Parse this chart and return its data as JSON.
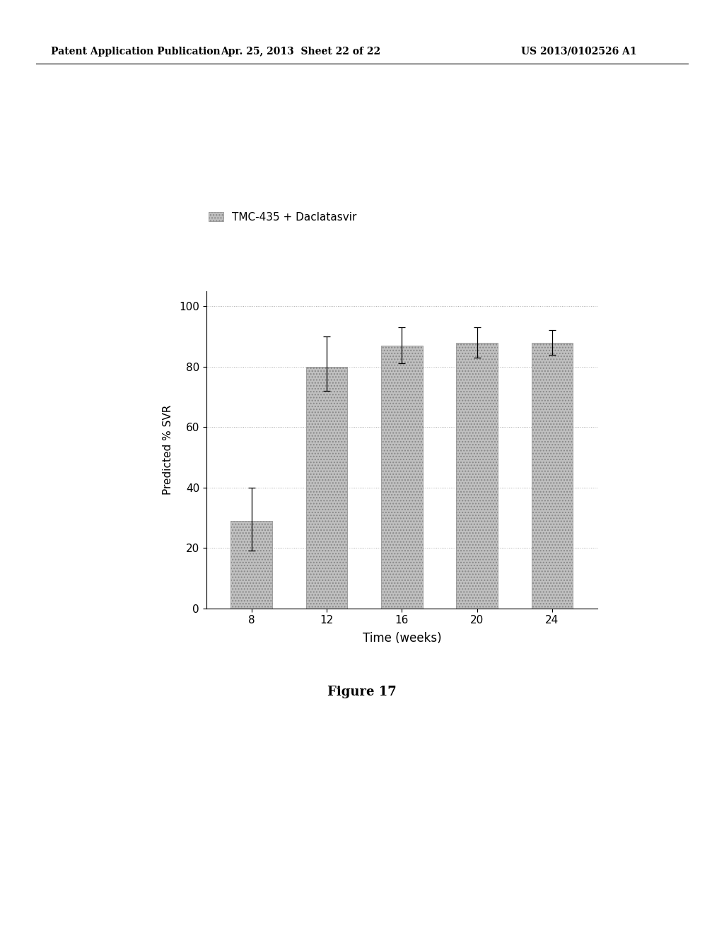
{
  "categories": [
    8,
    12,
    16,
    20,
    24
  ],
  "values": [
    29,
    80,
    87,
    88,
    88
  ],
  "errors_upper": [
    11,
    10,
    6,
    5,
    4
  ],
  "errors_lower": [
    10,
    8,
    6,
    5,
    4
  ],
  "bar_color": "#c0c0c0",
  "bar_hatch": "....",
  "xlabel": "Time (weeks)",
  "ylabel": "Predicted % SVR",
  "ylim": [
    0,
    105
  ],
  "yticks": [
    0,
    20,
    40,
    60,
    80,
    100
  ],
  "legend_label": "TMC-435 + Daclatasvir",
  "figure_caption": "Figure 17",
  "header_left": "Patent Application Publication",
  "header_mid": "Apr. 25, 2013  Sheet 22 of 22",
  "header_right": "US 2013/0102526 A1",
  "background_color": "#ffffff",
  "grid_color": "#aaaaaa"
}
